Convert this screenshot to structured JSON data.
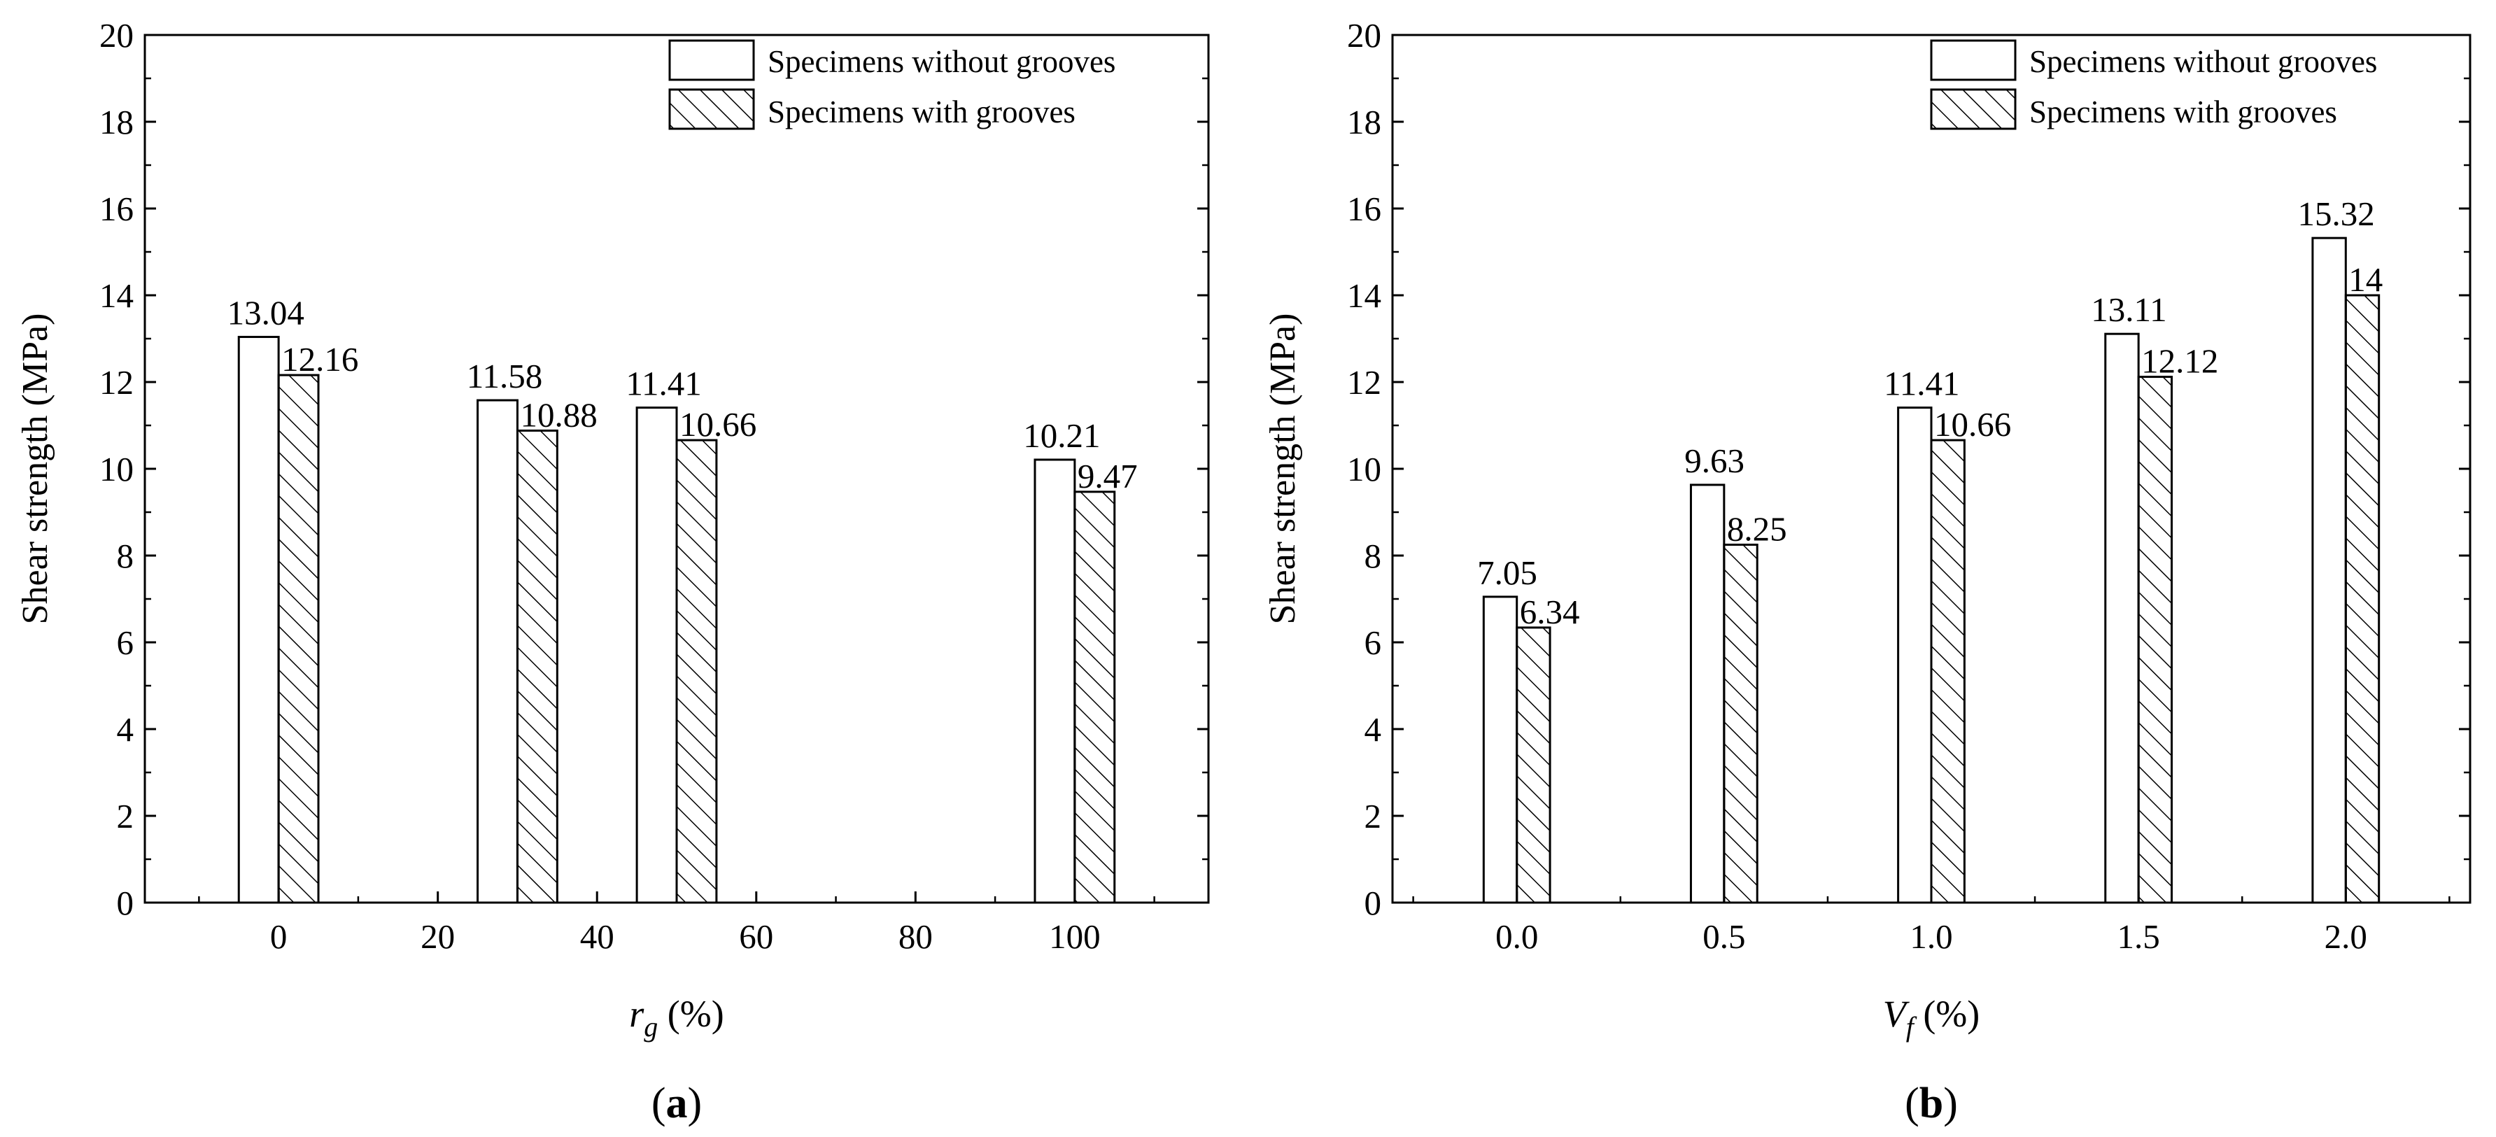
{
  "chart_data": [
    {
      "type": "bar",
      "panel_label": "a",
      "x": [
        0,
        30,
        50,
        100
      ],
      "xticks": [
        "0",
        "20",
        "40",
        "60",
        "80",
        "100"
      ],
      "xtick_values": [
        0,
        20,
        40,
        60,
        80,
        100
      ],
      "xlim": [
        -16.8,
        116.8
      ],
      "xlabel_main": "r",
      "xlabel_sub": "g",
      "xlabel_unit": "(%)",
      "ylabel": "Shear strength (MPa)",
      "ylim": [
        0,
        20
      ],
      "yticks": [
        "0",
        "2",
        "4",
        "6",
        "8",
        "10",
        "12",
        "14",
        "16",
        "18",
        "20"
      ],
      "bar_width_data": 5,
      "series": [
        {
          "name": "Specimens without grooves",
          "pattern": "open",
          "values": [
            13.04,
            11.58,
            11.41,
            10.21
          ],
          "labels": [
            "13.04",
            "11.58",
            "11.41",
            "10.21"
          ]
        },
        {
          "name": "Specimens with grooves",
          "pattern": "hatched",
          "values": [
            12.16,
            10.88,
            10.66,
            9.47
          ],
          "labels": [
            "12.16",
            "10.88",
            "10.66",
            "9.47"
          ]
        }
      ],
      "legend": "top-right",
      "grid": false
    },
    {
      "type": "bar",
      "panel_label": "b",
      "x": [
        0,
        0.5,
        1.0,
        1.5,
        2.0
      ],
      "xticks": [
        "0.0",
        "0.5",
        "1.0",
        "1.5",
        "2.0"
      ],
      "xtick_values": [
        0,
        0.5,
        1.0,
        1.5,
        2.0
      ],
      "xlim": [
        -0.3,
        2.3
      ],
      "xlabel_main": "V",
      "xlabel_sub": "f",
      "xlabel_unit": "(%)",
      "ylabel": "Shear strength (MPa)",
      "ylim": [
        0,
        20
      ],
      "yticks": [
        "0",
        "2",
        "4",
        "6",
        "8",
        "10",
        "12",
        "14",
        "16",
        "18",
        "20"
      ],
      "bar_width_data": 0.08,
      "series": [
        {
          "name": "Specimens without grooves",
          "pattern": "open",
          "values": [
            7.05,
            9.63,
            11.41,
            13.11,
            15.32
          ],
          "labels": [
            "7.05",
            "9.63",
            "11.41",
            "13.11",
            "15.32"
          ]
        },
        {
          "name": "Specimens with grooves",
          "pattern": "hatched",
          "values": [
            6.34,
            8.25,
            10.66,
            12.12,
            14
          ],
          "labels": [
            "6.34",
            "8.25",
            "10.66",
            "12.12",
            "14"
          ]
        }
      ],
      "legend": "top-right",
      "grid": false
    }
  ]
}
